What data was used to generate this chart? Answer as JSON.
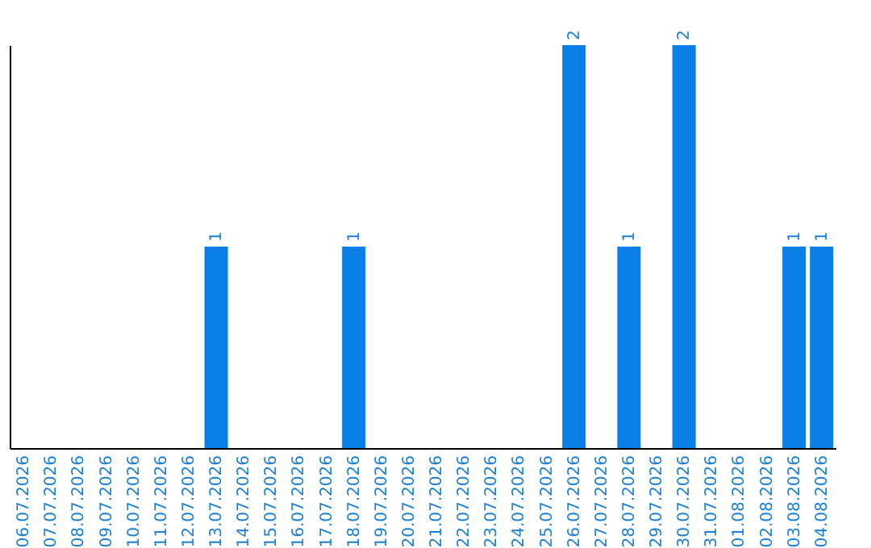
{
  "chart_data": {
    "type": "bar",
    "categories": [
      "06.07.2026",
      "07.07.2026",
      "08.07.2026",
      "09.07.2026",
      "10.07.2026",
      "11.07.2026",
      "12.07.2026",
      "13.07.2026",
      "14.07.2026",
      "15.07.2026",
      "16.07.2026",
      "17.07.2026",
      "18.07.2026",
      "19.07.2026",
      "20.07.2026",
      "21.07.2026",
      "22.07.2026",
      "23.07.2026",
      "24.07.2026",
      "25.07.2026",
      "26.07.2026",
      "27.07.2026",
      "28.07.2026",
      "29.07.2026",
      "30.07.2026",
      "31.07.2026",
      "01.08.2026",
      "02.08.2026",
      "03.08.2026",
      "04.08.2026"
    ],
    "values": [
      0,
      0,
      0,
      0,
      0,
      0,
      0,
      1,
      0,
      0,
      0,
      0,
      1,
      0,
      0,
      0,
      0,
      0,
      0,
      0,
      2,
      0,
      1,
      0,
      2,
      0,
      0,
      0,
      1,
      1
    ],
    "value_labels": [
      null,
      null,
      null,
      null,
      null,
      null,
      null,
      "1",
      null,
      null,
      null,
      null,
      "1",
      null,
      null,
      null,
      null,
      null,
      null,
      null,
      "2",
      null,
      "1",
      null,
      "2",
      null,
      null,
      null,
      "1",
      "1"
    ],
    "color": "#0a7fe6",
    "grid": false
  }
}
